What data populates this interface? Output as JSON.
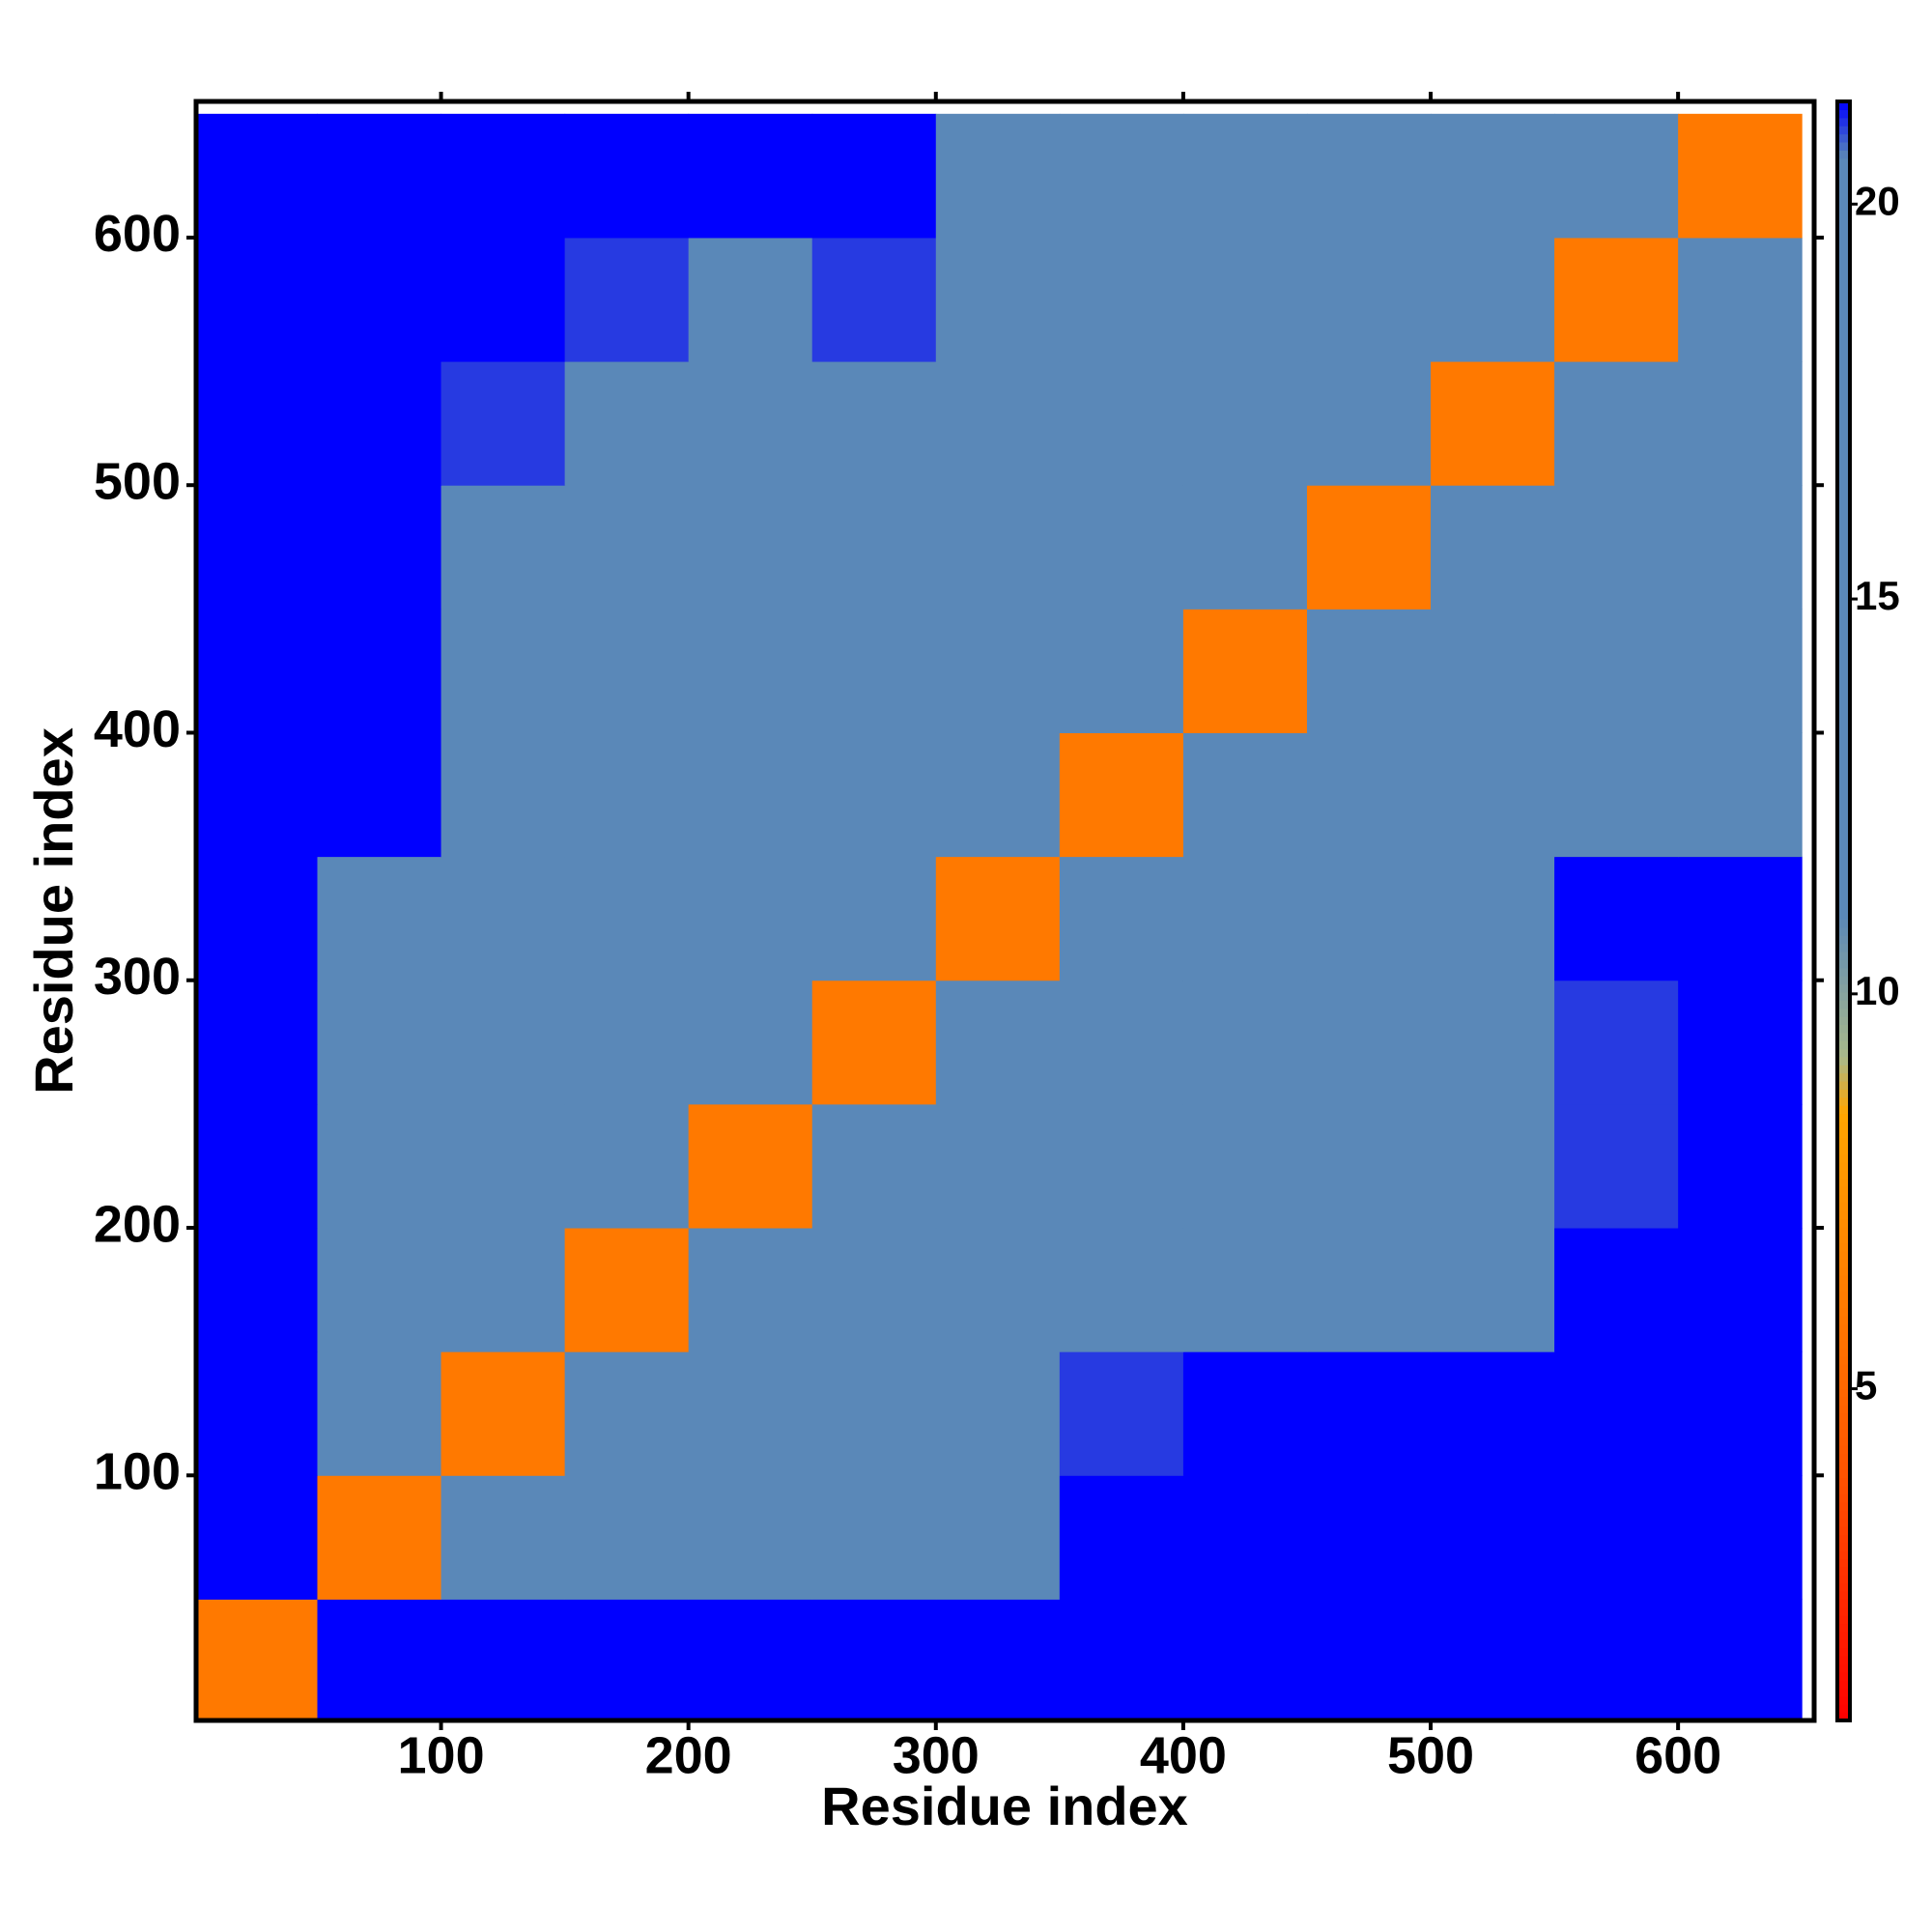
{
  "chart_data": {
    "type": "heatmap",
    "xlabel": "Residue index",
    "ylabel": "Residue index",
    "xlim": [
      1,
      655
    ],
    "ylim": [
      1,
      655
    ],
    "xticks": [
      100,
      200,
      300,
      400,
      500,
      600
    ],
    "yticks": [
      100,
      200,
      300,
      400,
      500,
      600
    ],
    "xbins": [
      0,
      50,
      100,
      150,
      200,
      250,
      300,
      350,
      400,
      450,
      500,
      550,
      600,
      650
    ],
    "ybins": [
      0,
      50,
      100,
      150,
      200,
      250,
      300,
      350,
      400,
      450,
      500,
      550,
      600,
      650
    ],
    "values": [
      [
        6,
        21.3,
        21.3,
        21.3,
        21.3,
        21.3,
        21.3,
        21.3,
        21.3,
        21.3,
        21.3,
        21.3,
        21.3
      ],
      [
        21.3,
        6,
        15,
        15,
        15,
        15,
        18,
        21.3,
        21.3,
        21.3,
        21.3,
        21.3,
        21.3
      ],
      [
        21.3,
        15,
        6,
        15,
        15,
        15,
        17,
        21,
        21.3,
        21.3,
        21.3,
        21.3,
        21.3
      ],
      [
        21.3,
        15,
        12,
        6,
        14,
        15,
        16,
        19,
        19,
        19.5,
        20.5,
        21.3,
        21.3
      ],
      [
        21.3,
        15,
        15,
        12,
        6,
        12,
        15,
        18.5,
        18.5,
        19,
        20,
        21,
        21.3
      ],
      [
        21.3,
        15.5,
        15,
        14,
        11,
        6,
        12,
        18,
        18,
        18.5,
        19.5,
        21,
        21.3
      ],
      [
        21.3,
        17,
        16,
        15,
        15,
        11,
        6,
        17,
        18,
        18.5,
        19.5,
        21.3,
        21.3
      ],
      [
        21.3,
        21.3,
        20,
        18.5,
        18.5,
        19,
        14,
        6,
        12,
        15,
        15,
        15,
        15
      ],
      [
        21.3,
        21.3,
        20,
        18.5,
        18.5,
        19,
        15,
        11,
        6,
        11,
        15,
        15,
        15
      ],
      [
        21.3,
        21.3,
        20,
        18.5,
        18.5,
        19,
        15,
        14,
        11,
        6,
        11,
        15,
        15
      ],
      [
        21.3,
        21.3,
        21,
        19.5,
        19,
        19.5,
        15,
        15,
        14,
        11,
        6,
        11,
        15
      ],
      [
        21.3,
        21.3,
        21.3,
        21,
        20.5,
        21,
        15,
        15,
        15,
        14,
        11,
        6,
        11
      ],
      [
        21.3,
        21.3,
        21.3,
        21.3,
        21.3,
        21.3,
        15,
        15,
        15,
        15,
        14,
        11,
        6
      ]
    ],
    "clim": [
      0.8,
      21.3
    ],
    "cticks": [
      5,
      10,
      15,
      20
    ],
    "colorscale": [
      [
        0.8,
        "#ff0000"
      ],
      [
        4,
        "#ff5500"
      ],
      [
        8.5,
        "#ffa500"
      ],
      [
        9.2,
        "#a9b98a"
      ],
      [
        11,
        "#5a88b8"
      ],
      [
        20.6,
        "#5a88b8"
      ],
      [
        21.3,
        "#0000ff"
      ]
    ]
  }
}
